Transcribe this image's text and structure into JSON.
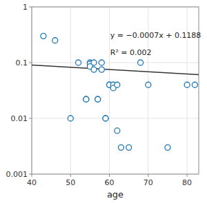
{
  "chart_data": {
    "type": "scatter",
    "xlabel": "age",
    "annotations": [
      "y = −0.0007x + 0.1188",
      "R² = 0.002"
    ],
    "series": [
      {
        "type": "scatter",
        "x": [
          43,
          46,
          50,
          52,
          54,
          54,
          55,
          55,
          55,
          56,
          56,
          57,
          57,
          58,
          58,
          59,
          59,
          60,
          60,
          61,
          61,
          62,
          62,
          63,
          65,
          68,
          70,
          75,
          80,
          82
        ],
        "values": [
          0.3,
          0.25,
          0.01,
          0.1,
          0.022,
          0.022,
          0.1,
          0.095,
          0.085,
          0.1,
          0.075,
          0.022,
          0.022,
          0.1,
          0.075,
          0.01,
          0.01,
          0.04,
          0.04,
          0.04,
          0.035,
          0.04,
          0.006,
          0.003,
          0.003,
          0.1,
          0.04,
          0.003,
          0.04,
          0.04
        ]
      },
      {
        "type": "line",
        "x": [
          40,
          83
        ],
        "values": [
          0.0908,
          0.0607
        ]
      }
    ],
    "xlim": [
      40,
      83
    ],
    "ylim": [
      0.001,
      1
    ],
    "xticks": [
      40,
      50,
      60,
      70,
      80
    ],
    "yticks": [
      0.001,
      0.01,
      0.1,
      1
    ],
    "log": "y",
    "grid": true
  }
}
